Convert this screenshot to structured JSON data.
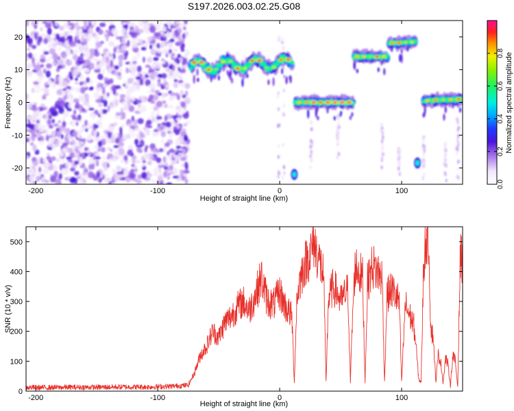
{
  "figure_title": "S197.2026.003.02.25.G08",
  "chart_data": [
    {
      "type": "heatmap",
      "title": "S197.2026.003.02.25.G08",
      "xlabel": "Height of straight line (km)",
      "ylabel": "Frequency (Hz)",
      "xlim": [
        -208,
        150
      ],
      "ylim": [
        -25,
        25
      ],
      "xticks": [
        -200,
        -100,
        0,
        100
      ],
      "yticks": [
        20,
        10,
        0,
        -10,
        -20
      ],
      "colorbar": {
        "label": "Normalized spectral amplitude",
        "range": [
          0,
          1
        ],
        "ticks": [
          "0.0",
          "0.2",
          "0.4",
          "0.6",
          "0.8"
        ],
        "colormap": "rainbow"
      },
      "noise_region": {
        "x_from": -208,
        "x_to": -75,
        "description": "scattered low-amplitude speckle"
      },
      "tracks": [
        {
          "x_start": -73,
          "x_end": 10,
          "freq_start": 11,
          "freq_end": 12,
          "peak_amplitude": 0.95
        },
        {
          "x_start": 13,
          "x_end": 60,
          "freq_start": 0,
          "freq_end": 0,
          "peak_amplitude": 1.0
        },
        {
          "x_start": 61,
          "x_end": 88,
          "freq_start": 14,
          "freq_end": 14,
          "peak_amplitude": 0.95
        },
        {
          "x_start": 90,
          "x_end": 111,
          "freq_start": 18,
          "freq_end": 18.5,
          "peak_amplitude": 0.9
        },
        {
          "x_start": 118,
          "x_end": 150,
          "freq_start": 0.5,
          "freq_end": 1,
          "peak_amplitude": 1.0
        }
      ],
      "blips": [
        {
          "x": 12,
          "freq": -22,
          "amplitude": 0.3
        },
        {
          "x": 113,
          "freq": -18.5,
          "amplitude": 0.35
        }
      ]
    },
    {
      "type": "line",
      "xlabel": "Height of straight line (km)",
      "ylabel": "SNR (10 * v/v)",
      "xlim": [
        -208,
        150
      ],
      "ylim": [
        0,
        550
      ],
      "xticks": [
        -200,
        -100,
        0,
        100
      ],
      "yticks": [
        0,
        100,
        200,
        300,
        400,
        500
      ],
      "color": "#e8302a",
      "series": [
        {
          "name": "SNR",
          "x": [
            -208,
            -190,
            -170,
            -150,
            -130,
            -110,
            -90,
            -75,
            -70,
            -65,
            -60,
            -55,
            -50,
            -45,
            -40,
            -35,
            -30,
            -25,
            -20,
            -15,
            -10,
            -5,
            0,
            5,
            10,
            12,
            14,
            16,
            20,
            25,
            28,
            30,
            33,
            36,
            38,
            40,
            44,
            47,
            50,
            53,
            56,
            58,
            60,
            62,
            65,
            68,
            70,
            72,
            76,
            80,
            84,
            86,
            88,
            90,
            92,
            95,
            98,
            100,
            103,
            106,
            108,
            110,
            112,
            114,
            116,
            118,
            120,
            122,
            123,
            124,
            126,
            128,
            130,
            132,
            134,
            136,
            138,
            140,
            142,
            144,
            146,
            148,
            150
          ],
          "values": [
            12,
            12,
            13,
            13,
            14,
            14,
            16,
            20,
            60,
            120,
            150,
            200,
            180,
            230,
            250,
            280,
            300,
            270,
            320,
            380,
            300,
            290,
            330,
            280,
            250,
            30,
            300,
            360,
            420,
            460,
            500,
            470,
            430,
            390,
            30,
            310,
            350,
            330,
            300,
            320,
            340,
            30,
            280,
            420,
            400,
            380,
            30,
            360,
            420,
            400,
            380,
            30,
            320,
            330,
            340,
            320,
            300,
            30,
            290,
            260,
            240,
            220,
            140,
            40,
            30,
            420,
            510,
            540,
            360,
            210,
            180,
            30,
            120,
            100,
            30,
            110,
            90,
            20,
            120,
            100,
            15,
            440,
            450
          ]
        }
      ]
    }
  ]
}
